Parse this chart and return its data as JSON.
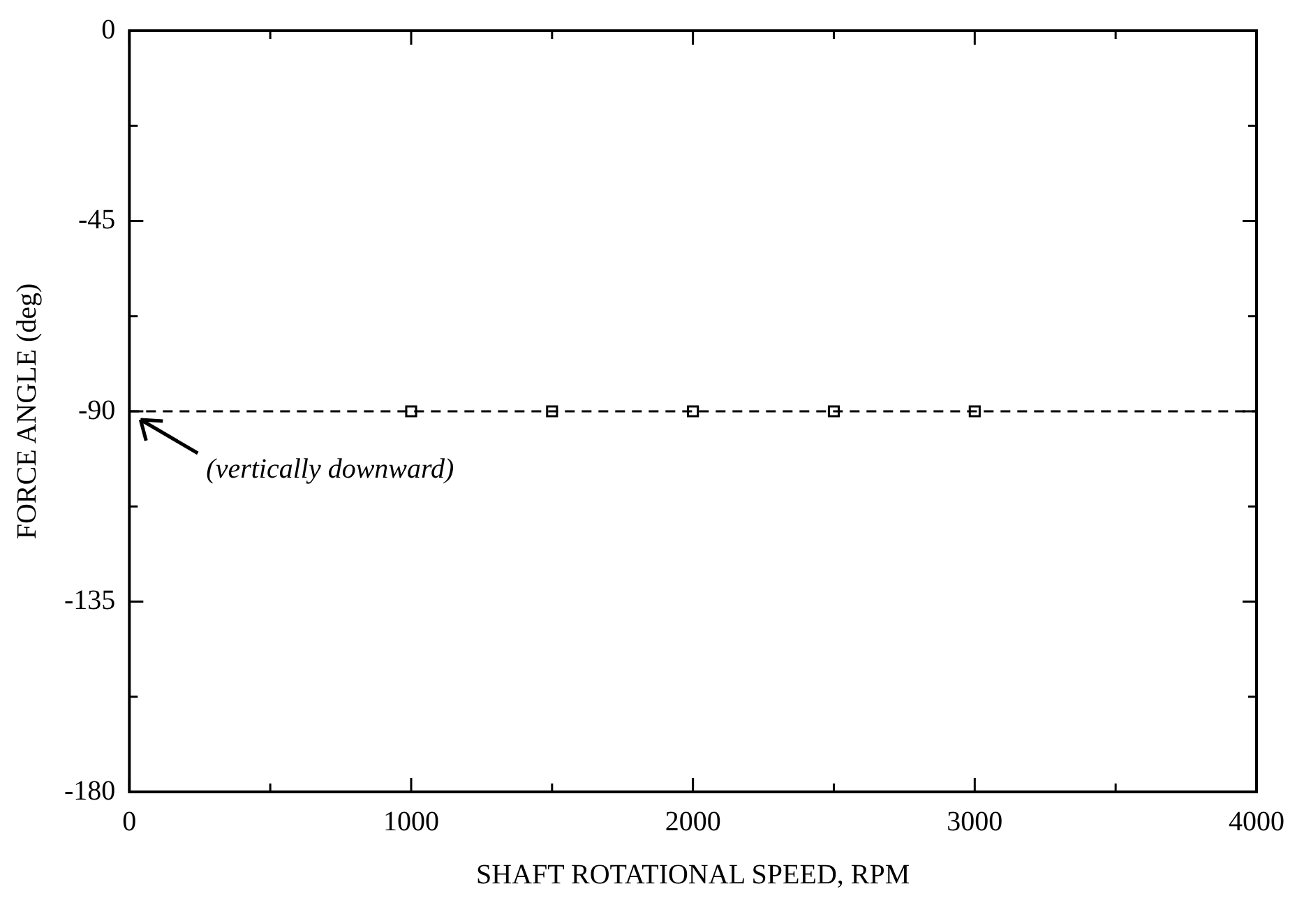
{
  "chart_data": {
    "type": "scatter",
    "xlabel": "SHAFT ROTATIONAL SPEED, RPM",
    "ylabel": "FORCE ANGLE (deg)",
    "series": [
      {
        "color": "#000000",
        "x": [
          1000,
          1500,
          2000,
          2500,
          3000
        ],
        "values": [
          -90,
          -90,
          -90,
          -90,
          -90
        ]
      }
    ],
    "marker": "square",
    "xlim": [
      0,
      4000
    ],
    "xticks": [
      0,
      {
        "value": 500,
        "label": null
      },
      1000,
      {
        "value": 1500,
        "label": null
      },
      2000,
      {
        "value": 2500,
        "label": null
      },
      3000,
      {
        "value": 3500,
        "label": null
      },
      4000
    ],
    "ylim": [
      -180,
      0
    ],
    "yticks": [
      -180,
      {
        "value": -157.5,
        "label": null
      },
      -135,
      {
        "value": -112.5,
        "label": null
      },
      -90,
      {
        "value": -67.5,
        "label": null
      },
      -45,
      {
        "value": -22.5,
        "label": null
      },
      0
    ],
    "ref_lines": [
      {
        "axis": "y",
        "value": -90,
        "color": "#000000",
        "line_style": "dashed"
      }
    ],
    "annotations": [
      "(vertically downward)"
    ],
    "grid": false,
    "legend": false
  }
}
